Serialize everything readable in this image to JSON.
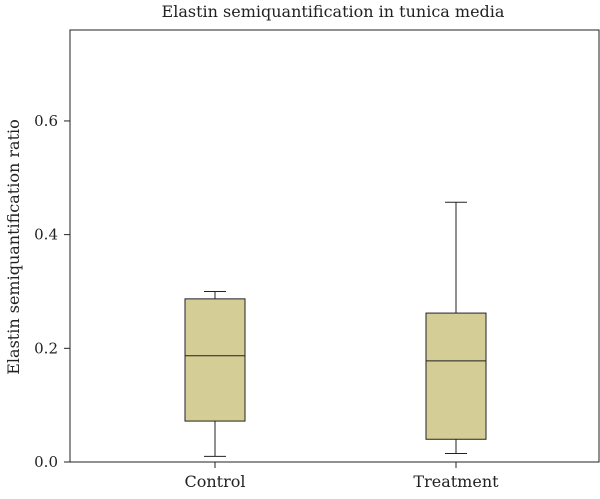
{
  "chart_data": {
    "type": "box",
    "title": "Elastin semiquantification in tunica media",
    "xlabel": "",
    "ylabel": "Elastin semiquantification ratio",
    "ylim": [
      0,
      0.76
    ],
    "yticks": [
      0.0,
      0.2,
      0.4,
      0.6
    ],
    "ytick_labels": [
      "0.0",
      "0.2",
      "0.4",
      "0.6"
    ],
    "grid": false,
    "box_color": "#d4cd96",
    "line_color": "#222222",
    "categories": [
      "Control",
      "Treatment"
    ],
    "boxes": [
      {
        "category": "Control",
        "whisker_low": 0.01,
        "q1": 0.072,
        "median": 0.187,
        "q3": 0.287,
        "whisker_high": 0.3
      },
      {
        "category": "Treatment",
        "whisker_low": 0.015,
        "q1": 0.04,
        "median": 0.178,
        "q3": 0.262,
        "whisker_high": 0.457
      }
    ]
  }
}
